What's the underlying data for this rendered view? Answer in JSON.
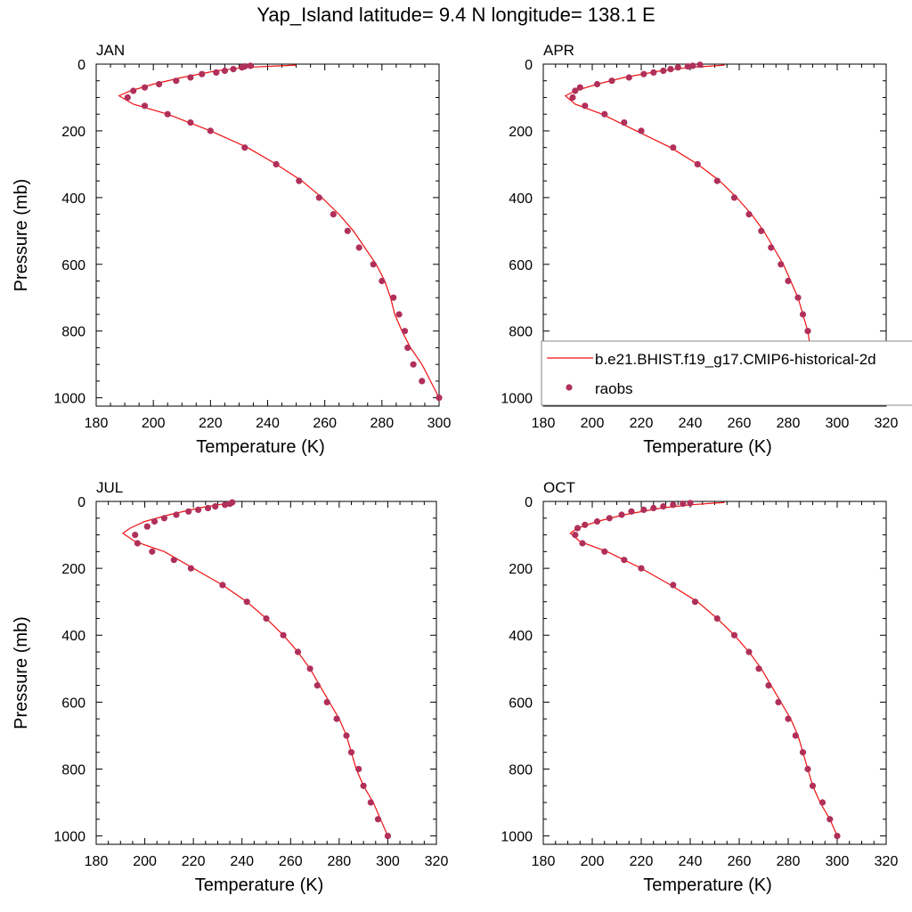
{
  "title": "Yap_Island  latitude= 9.4 N longitude= 138.1 E",
  "colors": {
    "model": "#ee1111",
    "obs": "#b0305a"
  },
  "legend": {
    "model_label": "b.e21.BHIST.f19_g17.CMIP6-historical-2d",
    "obs_label": "raobs",
    "placement": "right-edge-of-APR-panel"
  },
  "chart_data": [
    {
      "type": "line",
      "title": "JAN",
      "xlabel": "Temperature (K)",
      "ylabel": "Pressure (mb)",
      "xlim": [
        180,
        300
      ],
      "ylim": [
        0,
        1025
      ],
      "y_inverted": true,
      "xticks": [
        180,
        200,
        220,
        240,
        260,
        280,
        300
      ],
      "yticks": [
        0,
        200,
        400,
        600,
        800,
        1000
      ],
      "model_line": {
        "name": "b.e21.BHIST.f19_g17.CMIP6-historical-2d",
        "x": [
          250,
          232,
          222,
          210,
          200,
          192,
          188,
          193,
          205,
          220,
          233,
          243,
          252,
          259,
          265,
          270,
          274,
          278,
          281,
          283,
          284.5,
          287,
          290,
          294,
          297,
          300
        ],
        "y": [
          3,
          10,
          20,
          40,
          60,
          80,
          95,
          120,
          150,
          200,
          250,
          300,
          350,
          400,
          450,
          500,
          550,
          600,
          650,
          700,
          750,
          800,
          850,
          900,
          950,
          1000
        ]
      },
      "obs": {
        "name": "raobs",
        "x": [
          234,
          232,
          231,
          228,
          225,
          222,
          217,
          213,
          208,
          202,
          197,
          193,
          191,
          197,
          205,
          213,
          220,
          232,
          243,
          251,
          258,
          263,
          268,
          272,
          277,
          280,
          284,
          286,
          288,
          289,
          291,
          294,
          300
        ],
        "y": [
          5,
          7,
          10,
          15,
          20,
          25,
          30,
          40,
          50,
          60,
          70,
          80,
          100,
          125,
          150,
          175,
          200,
          250,
          300,
          350,
          400,
          450,
          500,
          550,
          600,
          650,
          700,
          750,
          800,
          850,
          900,
          950,
          1000
        ]
      }
    },
    {
      "type": "line",
      "title": "APR",
      "xlabel": "Temperature (K)",
      "ylabel": "",
      "xlim": [
        180,
        320
      ],
      "ylim": [
        0,
        1025
      ],
      "y_inverted": true,
      "xticks": [
        180,
        200,
        220,
        240,
        260,
        280,
        300,
        320
      ],
      "yticks": [
        0,
        200,
        400,
        600,
        800,
        1000
      ],
      "model_line": {
        "name": "b.e21.BHIST.f19_g17.CMIP6-historical-2d",
        "x": [
          254,
          240,
          228,
          213,
          202,
          193,
          189,
          193,
          204,
          218,
          232,
          243,
          252,
          259,
          265,
          270,
          274,
          278,
          281,
          284,
          286,
          288,
          289,
          292,
          296,
          300
        ],
        "y": [
          3,
          10,
          20,
          40,
          60,
          80,
          95,
          120,
          150,
          200,
          250,
          300,
          350,
          400,
          450,
          500,
          550,
          600,
          650,
          700,
          750,
          800,
          850,
          900,
          950,
          1000
        ]
      },
      "obs": {
        "name": "raobs",
        "x": [
          244,
          241,
          239,
          235,
          232,
          229,
          225,
          221,
          215,
          208,
          202,
          195,
          193,
          192,
          197,
          205,
          213,
          220,
          233,
          243,
          251,
          258,
          264,
          269,
          273,
          277,
          280,
          284,
          286,
          288,
          289,
          290,
          294,
          297,
          300
        ],
        "y": [
          2,
          5,
          7,
          10,
          15,
          20,
          25,
          30,
          40,
          50,
          60,
          70,
          80,
          100,
          125,
          150,
          175,
          200,
          250,
          300,
          350,
          400,
          450,
          500,
          550,
          600,
          650,
          700,
          750,
          800,
          850,
          900,
          925,
          950,
          1000
        ]
      }
    },
    {
      "type": "line",
      "title": "JUL",
      "xlabel": "Temperature (K)",
      "ylabel": "Pressure (mb)",
      "xlim": [
        180,
        320
      ],
      "ylim": [
        0,
        1025
      ],
      "y_inverted": true,
      "xticks": [
        180,
        200,
        220,
        240,
        260,
        280,
        300,
        320
      ],
      "yticks": [
        0,
        200,
        400,
        600,
        800,
        1000
      ],
      "model_line": {
        "name": "b.e21.BHIST.f19_g17.CMIP6-historical-2d",
        "x": [
          237,
          230,
          222,
          210,
          200,
          194,
          191,
          196,
          208,
          220,
          232,
          242,
          250,
          257,
          263,
          268,
          272,
          276,
          280,
          283,
          285,
          287,
          290,
          294,
          297,
          300
        ],
        "y": [
          3,
          10,
          20,
          40,
          60,
          80,
          95,
          120,
          150,
          200,
          250,
          300,
          350,
          400,
          450,
          500,
          550,
          600,
          650,
          700,
          750,
          800,
          850,
          900,
          950,
          1000
        ]
      },
      "obs": {
        "name": "raobs",
        "x": [
          236,
          235,
          233,
          229,
          226,
          222,
          218,
          213,
          208,
          204,
          201,
          196,
          197,
          203,
          212,
          219,
          232,
          242,
          250,
          257,
          263,
          268,
          271,
          275,
          279,
          283,
          285,
          288,
          290,
          293,
          296,
          300
        ],
        "y": [
          3,
          7,
          10,
          15,
          20,
          25,
          30,
          40,
          50,
          60,
          75,
          100,
          125,
          150,
          175,
          200,
          250,
          300,
          350,
          400,
          450,
          500,
          550,
          600,
          650,
          700,
          750,
          800,
          850,
          900,
          950,
          1000
        ]
      }
    },
    {
      "type": "line",
      "title": "OCT",
      "xlabel": "Temperature (K)",
      "ylabel": "",
      "xlim": [
        180,
        320
      ],
      "ylim": [
        0,
        1025
      ],
      "y_inverted": true,
      "xticks": [
        180,
        200,
        220,
        240,
        260,
        280,
        300,
        320
      ],
      "yticks": [
        0,
        200,
        400,
        600,
        800,
        1000
      ],
      "model_line": {
        "name": "b.e21.BHIST.f19_g17.CMIP6-historical-2d",
        "x": [
          254,
          240,
          228,
          213,
          202,
          194,
          191,
          195,
          206,
          220,
          232,
          243,
          251,
          258,
          264,
          269,
          273,
          277,
          281,
          284,
          286,
          288,
          290,
          293,
          297,
          300
        ],
        "y": [
          3,
          10,
          20,
          40,
          60,
          80,
          95,
          120,
          150,
          200,
          250,
          300,
          350,
          400,
          450,
          500,
          550,
          600,
          650,
          700,
          750,
          800,
          850,
          900,
          950,
          1000
        ]
      },
      "obs": {
        "name": "raobs",
        "x": [
          240,
          237,
          233,
          229,
          225,
          221,
          216,
          212,
          207,
          202,
          197,
          194,
          193,
          196,
          205,
          213,
          220,
          233,
          242,
          251,
          258,
          264,
          268,
          272,
          276,
          280,
          283,
          286,
          288,
          290,
          294,
          297,
          300
        ],
        "y": [
          5,
          7,
          10,
          15,
          20,
          25,
          30,
          40,
          50,
          60,
          70,
          80,
          100,
          125,
          150,
          175,
          200,
          250,
          300,
          350,
          400,
          450,
          500,
          550,
          600,
          650,
          700,
          750,
          800,
          850,
          900,
          950,
          1000
        ]
      }
    }
  ]
}
